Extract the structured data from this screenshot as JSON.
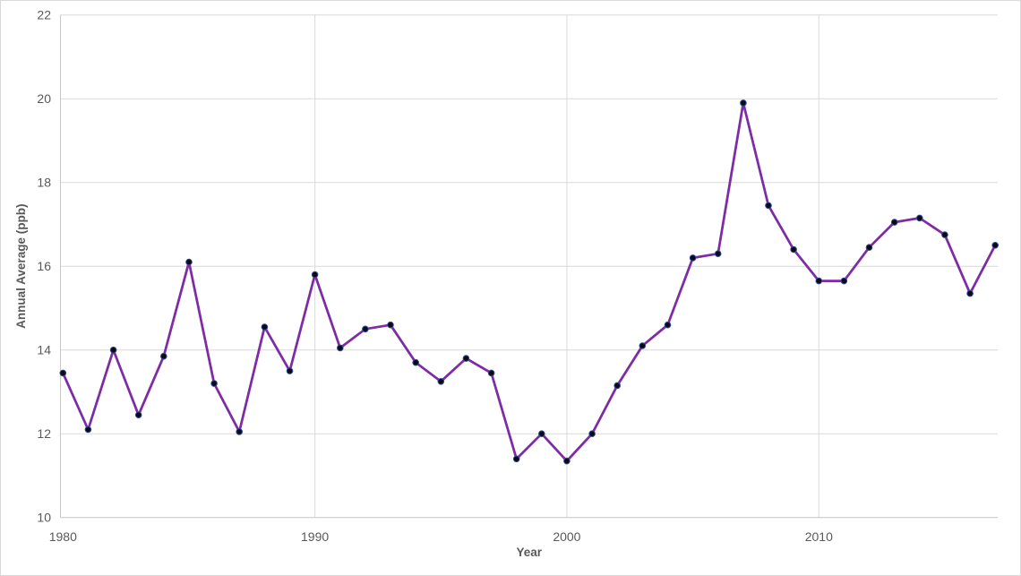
{
  "chart": {
    "background_color": "#ffffff",
    "frame_border_color": "#d9d9d9"
  },
  "chart_data": {
    "type": "line",
    "title": "",
    "xlabel": "Year",
    "ylabel": "Annual Average (ppb)",
    "x": [
      1980,
      1981,
      1982,
      1983,
      1984,
      1985,
      1986,
      1987,
      1988,
      1989,
      1990,
      1991,
      1992,
      1993,
      1994,
      1995,
      1996,
      1997,
      1998,
      1999,
      2000,
      2001,
      2002,
      2003,
      2004,
      2005,
      2006,
      2007,
      2008,
      2009,
      2010,
      2011,
      2012,
      2013,
      2014,
      2015,
      2016,
      2017
    ],
    "series": [
      {
        "name": "Annual Average (ppb)",
        "values": [
          13.45,
          12.1,
          14.0,
          12.45,
          13.85,
          16.1,
          13.2,
          12.05,
          14.55,
          13.5,
          15.8,
          14.05,
          14.5,
          14.6,
          13.7,
          13.25,
          13.8,
          13.45,
          11.4,
          12.0,
          11.35,
          12.0,
          13.15,
          14.1,
          14.6,
          16.2,
          16.3,
          19.9,
          17.45,
          16.4,
          15.65,
          15.65,
          16.45,
          17.05,
          17.15,
          16.75,
          15.35,
          16.5
        ],
        "line_color": "#7e2ba6",
        "marker_fill": "#0b0b14",
        "marker_edge": "#2f4a9e",
        "markers": true
      }
    ],
    "xlim": [
      1979.9,
      2017.1
    ],
    "ylim": [
      10,
      22
    ],
    "xticks": [
      1980,
      1990,
      2000,
      2010
    ],
    "yticks": [
      10,
      12,
      14,
      16,
      18,
      20,
      22
    ],
    "grid": true,
    "gridline_color": "#d9d9d9",
    "axis_line_color": "#c6c6c6",
    "tick_label_color": "#595959",
    "axis_title_color": "#595959",
    "legend": "none"
  }
}
